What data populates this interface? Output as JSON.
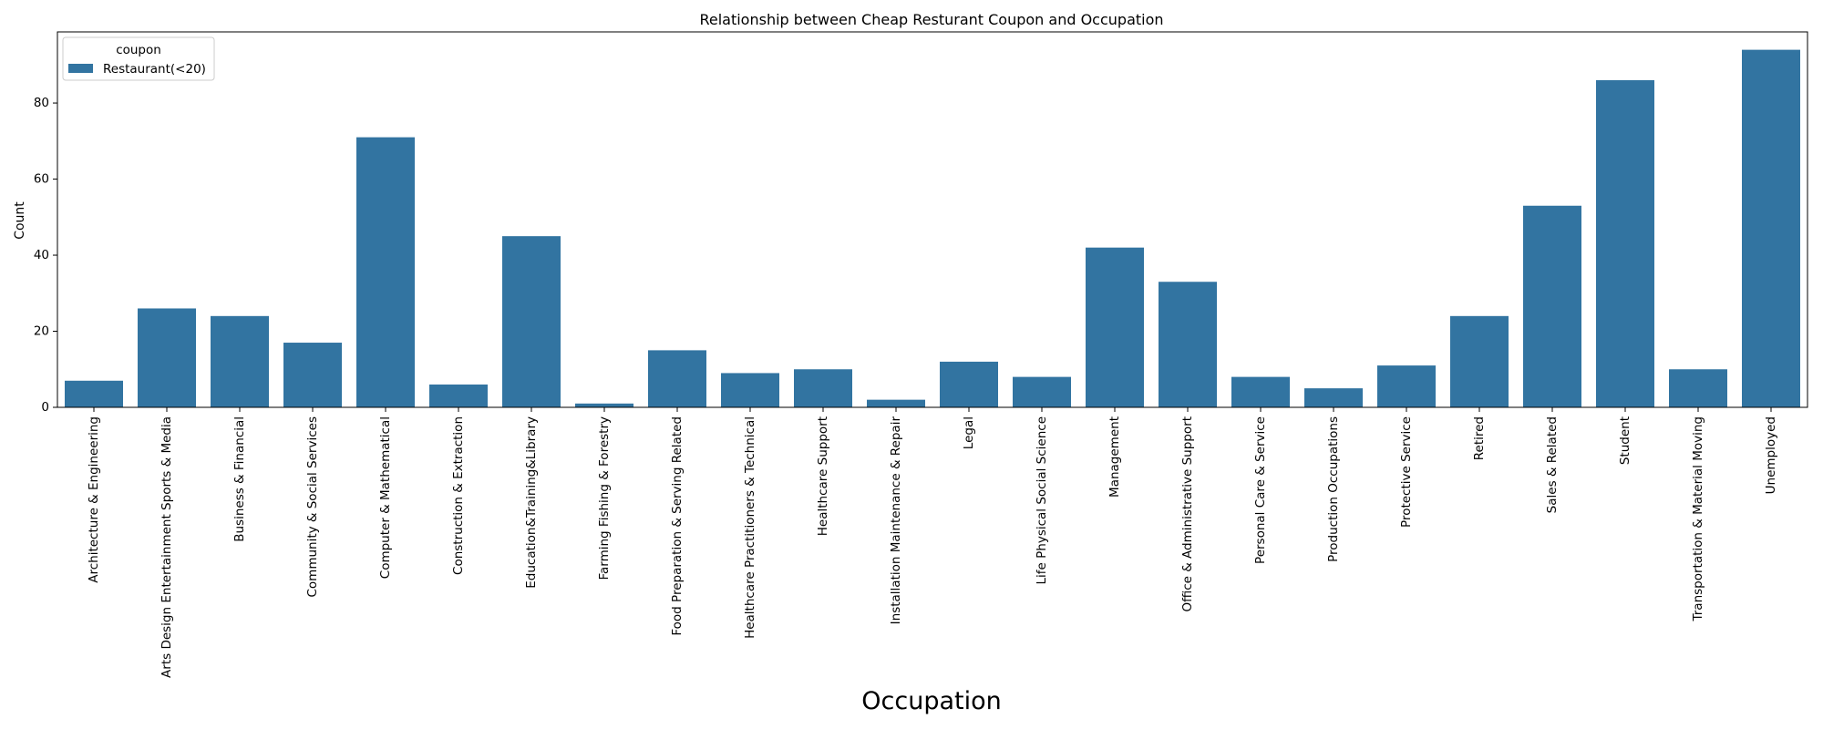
{
  "chart_data": {
    "type": "bar",
    "title": "Relationship between Cheap Resturant Coupon and Occupation",
    "xlabel": "Occupation",
    "ylabel": "Count",
    "ylim": [
      0,
      98.7
    ],
    "yticks": [
      0,
      20,
      40,
      60,
      80
    ],
    "grid": false,
    "legend": {
      "title": "coupon",
      "placement": "top-left"
    },
    "categories": [
      "Architecture & Engineering",
      "Arts Design Entertainment Sports & Media",
      "Business & Financial",
      "Community & Social Services",
      "Computer & Mathematical",
      "Construction & Extraction",
      "Education&Training&Library",
      "Farming Fishing & Forestry",
      "Food Preparation & Serving Related",
      "Healthcare Practitioners & Technical",
      "Healthcare Support",
      "Installation Maintenance & Repair",
      "Legal",
      "Life Physical Social Science",
      "Management",
      "Office & Administrative Support",
      "Personal Care & Service",
      "Production Occupations",
      "Protective Service",
      "Retired",
      "Sales & Related",
      "Student",
      "Transportation & Material Moving",
      "Unemployed"
    ],
    "series": [
      {
        "name": "Restaurant(<20)",
        "color": "#3274a1",
        "values": [
          7,
          26,
          24,
          17,
          71,
          6,
          45,
          1,
          15,
          9,
          10,
          2,
          12,
          8,
          42,
          33,
          8,
          5,
          11,
          24,
          53,
          86,
          10,
          94
        ]
      }
    ]
  }
}
